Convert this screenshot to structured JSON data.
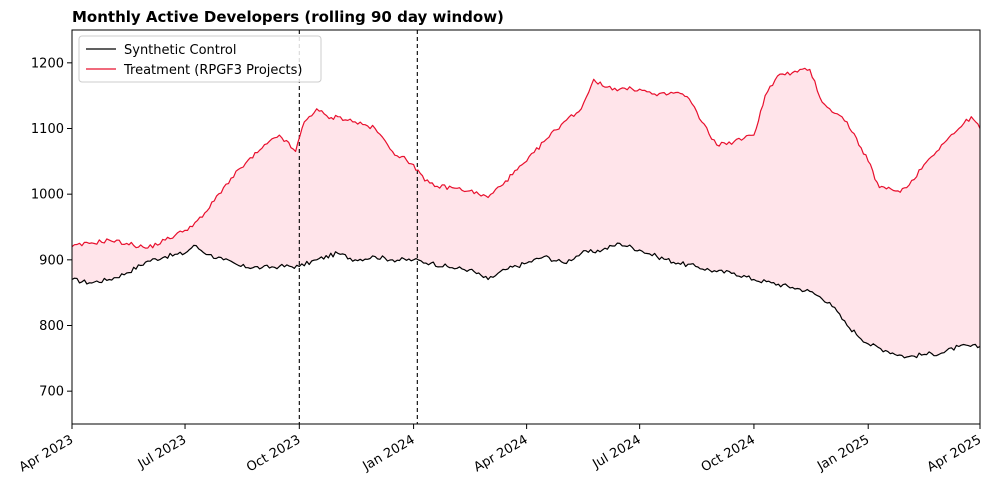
{
  "chart_data": {
    "type": "line",
    "title": "Monthly Active Developers (rolling 90 day window)",
    "xlabel": "",
    "ylabel": "",
    "x_range": [
      "2023-04-01",
      "2025-04-01"
    ],
    "ylim": [
      650,
      1250
    ],
    "y_ticks": [
      700,
      800,
      900,
      1000,
      1100,
      1200
    ],
    "x_ticks": [
      {
        "date": "2023-04-01",
        "label": "Apr 2023"
      },
      {
        "date": "2023-07-01",
        "label": "Jul 2023"
      },
      {
        "date": "2023-10-01",
        "label": "Oct 2023"
      },
      {
        "date": "2024-01-01",
        "label": "Jan 2024"
      },
      {
        "date": "2024-04-01",
        "label": "Apr 2024"
      },
      {
        "date": "2024-07-01",
        "label": "Jul 2024"
      },
      {
        "date": "2024-10-01",
        "label": "Oct 2024"
      },
      {
        "date": "2025-01-01",
        "label": "Jan 2025"
      },
      {
        "date": "2025-04-01",
        "label": "Apr 2025"
      }
    ],
    "vlines": [
      "2023-10-01",
      "2024-01-04"
    ],
    "grid": false,
    "legend_position": "top-left",
    "fill_between": {
      "color": "#ffe4ea",
      "series": [
        "Synthetic Control",
        "Treatment (RPGF3 Projects)"
      ]
    },
    "series": [
      {
        "name": "Synthetic Control",
        "color": "#000000",
        "points": [
          [
            "2023-04-01",
            870
          ],
          [
            "2023-04-15",
            865
          ],
          [
            "2023-05-01",
            870
          ],
          [
            "2023-05-15",
            880
          ],
          [
            "2023-06-01",
            898
          ],
          [
            "2023-06-15",
            905
          ],
          [
            "2023-07-01",
            910
          ],
          [
            "2023-07-08",
            922
          ],
          [
            "2023-07-20",
            908
          ],
          [
            "2023-08-01",
            900
          ],
          [
            "2023-08-15",
            890
          ],
          [
            "2023-09-01",
            888
          ],
          [
            "2023-09-15",
            890
          ],
          [
            "2023-10-01",
            890
          ],
          [
            "2023-10-15",
            900
          ],
          [
            "2023-11-01",
            910
          ],
          [
            "2023-11-15",
            900
          ],
          [
            "2023-12-01",
            905
          ],
          [
            "2023-12-15",
            900
          ],
          [
            "2024-01-01",
            900
          ],
          [
            "2024-01-15",
            895
          ],
          [
            "2024-02-01",
            888
          ],
          [
            "2024-02-15",
            885
          ],
          [
            "2024-03-01",
            870
          ],
          [
            "2024-03-15",
            885
          ],
          [
            "2024-04-01",
            895
          ],
          [
            "2024-04-15",
            905
          ],
          [
            "2024-05-01",
            895
          ],
          [
            "2024-05-15",
            910
          ],
          [
            "2024-06-01",
            915
          ],
          [
            "2024-06-15",
            925
          ],
          [
            "2024-07-01",
            915
          ],
          [
            "2024-07-15",
            905
          ],
          [
            "2024-08-01",
            895
          ],
          [
            "2024-08-15",
            890
          ],
          [
            "2024-09-01",
            882
          ],
          [
            "2024-09-15",
            880
          ],
          [
            "2024-10-01",
            870
          ],
          [
            "2024-10-15",
            865
          ],
          [
            "2024-11-01",
            858
          ],
          [
            "2024-11-15",
            852
          ],
          [
            "2024-12-01",
            835
          ],
          [
            "2024-12-15",
            800
          ],
          [
            "2025-01-01",
            772
          ],
          [
            "2025-01-15",
            762
          ],
          [
            "2025-02-01",
            752
          ],
          [
            "2025-02-15",
            756
          ],
          [
            "2025-03-01",
            758
          ],
          [
            "2025-03-15",
            768
          ],
          [
            "2025-04-01",
            768
          ]
        ]
      },
      {
        "name": "Treatment (RPGF3 Projects)",
        "color": "#e8102e",
        "points": [
          [
            "2023-04-01",
            920
          ],
          [
            "2023-04-15",
            925
          ],
          [
            "2023-05-01",
            930
          ],
          [
            "2023-05-15",
            925
          ],
          [
            "2023-06-01",
            918
          ],
          [
            "2023-06-15",
            930
          ],
          [
            "2023-07-01",
            945
          ],
          [
            "2023-07-15",
            965
          ],
          [
            "2023-08-01",
            1010
          ],
          [
            "2023-08-15",
            1040
          ],
          [
            "2023-09-01",
            1070
          ],
          [
            "2023-09-15",
            1090
          ],
          [
            "2023-09-28",
            1065
          ],
          [
            "2023-10-05",
            1110
          ],
          [
            "2023-10-15",
            1130
          ],
          [
            "2023-10-25",
            1115
          ],
          [
            "2023-11-01",
            1118
          ],
          [
            "2023-11-15",
            1110
          ],
          [
            "2023-12-01",
            1100
          ],
          [
            "2023-12-15",
            1065
          ],
          [
            "2024-01-01",
            1045
          ],
          [
            "2024-01-10",
            1020
          ],
          [
            "2024-01-20",
            1012
          ],
          [
            "2024-02-01",
            1010
          ],
          [
            "2024-02-15",
            1005
          ],
          [
            "2024-03-01",
            995
          ],
          [
            "2024-03-15",
            1020
          ],
          [
            "2024-04-01",
            1050
          ],
          [
            "2024-04-15",
            1080
          ],
          [
            "2024-05-01",
            1110
          ],
          [
            "2024-05-15",
            1130
          ],
          [
            "2024-05-25",
            1175
          ],
          [
            "2024-06-01",
            1165
          ],
          [
            "2024-06-15",
            1160
          ],
          [
            "2024-07-01",
            1160
          ],
          [
            "2024-07-15",
            1150
          ],
          [
            "2024-08-01",
            1155
          ],
          [
            "2024-08-10",
            1145
          ],
          [
            "2024-08-20",
            1110
          ],
          [
            "2024-09-01",
            1075
          ],
          [
            "2024-09-15",
            1080
          ],
          [
            "2024-10-01",
            1090
          ],
          [
            "2024-10-10",
            1150
          ],
          [
            "2024-10-20",
            1180
          ],
          [
            "2024-11-01",
            1185
          ],
          [
            "2024-11-15",
            1190
          ],
          [
            "2024-11-25",
            1140
          ],
          [
            "2024-12-01",
            1130
          ],
          [
            "2024-12-15",
            1110
          ],
          [
            "2025-01-01",
            1050
          ],
          [
            "2025-01-10",
            1010
          ],
          [
            "2025-01-25",
            1005
          ],
          [
            "2025-02-01",
            1010
          ],
          [
            "2025-02-15",
            1045
          ],
          [
            "2025-03-01",
            1075
          ],
          [
            "2025-03-15",
            1100
          ],
          [
            "2025-03-25",
            1118
          ],
          [
            "2025-04-01",
            1100
          ]
        ]
      }
    ]
  }
}
